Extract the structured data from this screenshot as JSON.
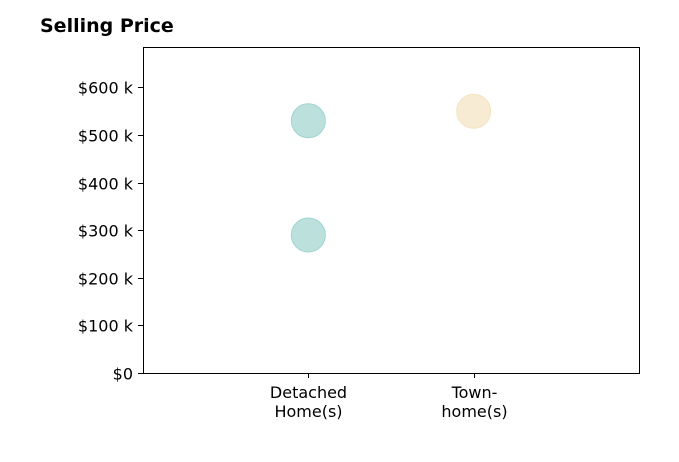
{
  "chart_data": {
    "type": "scatter",
    "title": "Selling Price",
    "xlabel": "",
    "ylabel": "",
    "categories": [
      [
        "Detached",
        "Home(s)"
      ],
      [
        "Town-",
        "home(s)"
      ]
    ],
    "y_ticks": [
      0,
      100,
      200,
      300,
      400,
      500,
      600
    ],
    "y_tick_labels": [
      "$0",
      "$100 k",
      "$200 k",
      "$300 k",
      "$400 k",
      "$500 k",
      "$600 k"
    ],
    "ylim": [
      0,
      685
    ],
    "xlim": [
      0,
      3
    ],
    "grid": false,
    "series": [
      {
        "color": "#9fd4cf",
        "points": [
          {
            "category_index": 0,
            "x": 1,
            "y": 530
          },
          {
            "category_index": 0,
            "x": 1,
            "y": 290
          }
        ]
      },
      {
        "color": "#f5e3c0",
        "points": [
          {
            "category_index": 1,
            "x": 2,
            "y": 550
          }
        ]
      }
    ]
  }
}
